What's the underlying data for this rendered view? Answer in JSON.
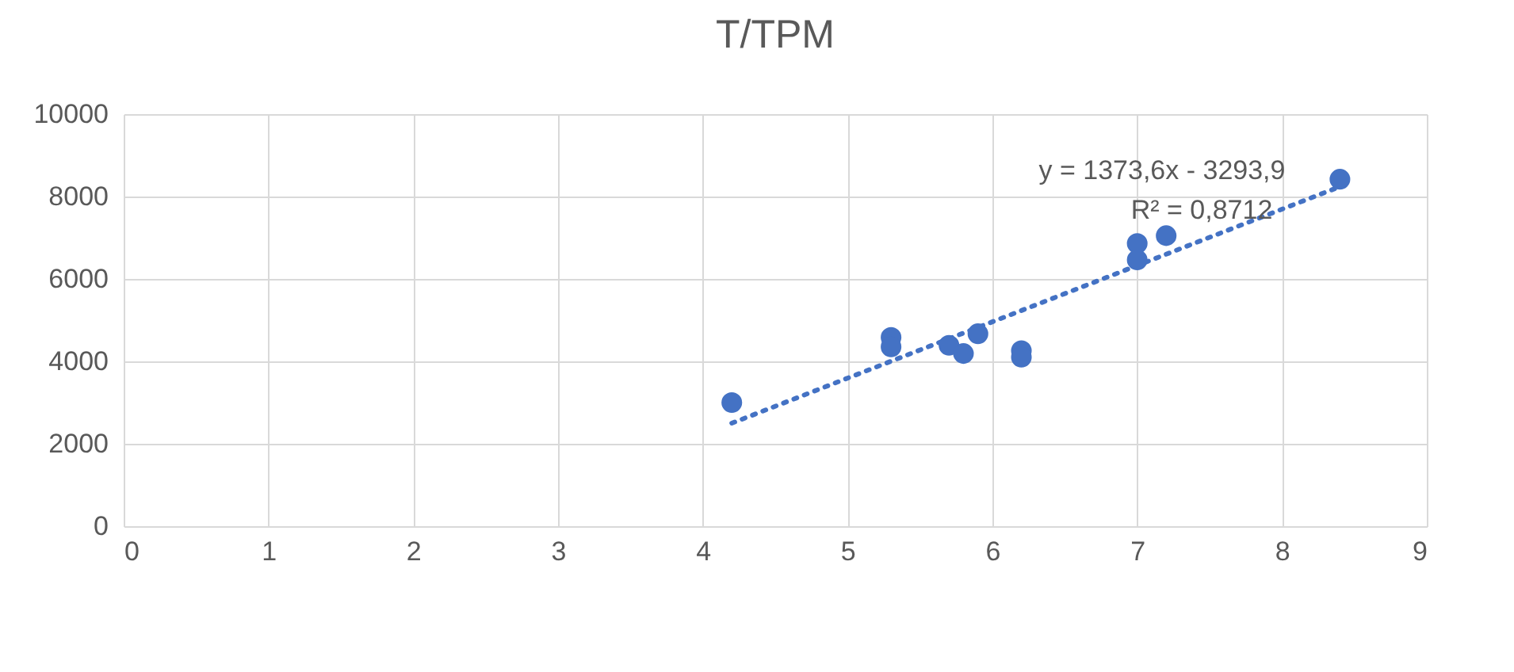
{
  "chart_data": {
    "type": "scatter",
    "title": "T/TPM",
    "xlim": [
      0,
      9
    ],
    "xticks": [
      0,
      1,
      2,
      3,
      4,
      5,
      6,
      7,
      8,
      9
    ],
    "ylim": [
      0,
      10000
    ],
    "yticks": [
      0,
      2000,
      4000,
      6000,
      8000,
      10000
    ],
    "grid": true,
    "marker": "circle",
    "series": [
      {
        "color": "#4472c4",
        "x": [
          4.2,
          5.3,
          5.3,
          5.7,
          5.8,
          5.9,
          6.2,
          6.2,
          7.0,
          7.0,
          7.2,
          8.4
        ],
        "values": [
          3000,
          4580,
          4350,
          4390,
          4190,
          4670,
          4260,
          4100,
          6860,
          6460,
          7050,
          8420
        ]
      },
      {
        "type": "line",
        "marker": "none",
        "line_style": "dotted",
        "color": "#4472c4",
        "x": [
          4.2,
          8.4
        ],
        "values": [
          2500,
          8240
        ]
      }
    ],
    "annotations": [
      "y = 1373,6x - 3293,9",
      "R² = 0,8712"
    ]
  }
}
